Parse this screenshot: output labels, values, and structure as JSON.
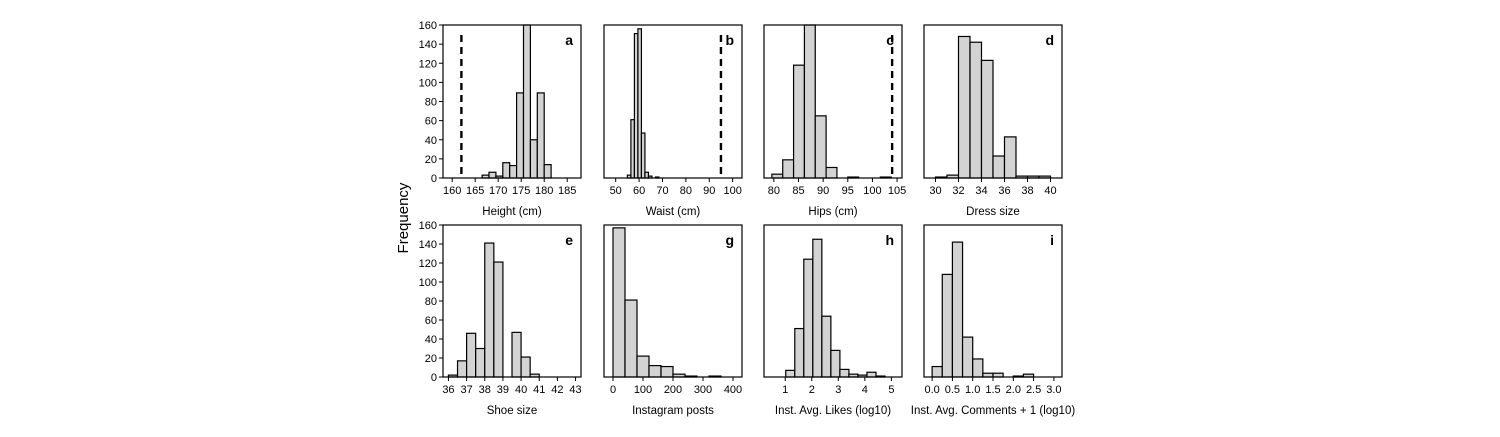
{
  "figure": {
    "ylabel": "Frequency"
  },
  "chart_data": [
    {
      "type": "bar",
      "panel": "a",
      "xlabel": "Height (cm)",
      "ylabel": "Frequency",
      "xlim": [
        158,
        188
      ],
      "ylim": [
        0,
        160
      ],
      "xticks": [
        160,
        165,
        170,
        175,
        180,
        185
      ],
      "yticks": [
        0,
        20,
        40,
        60,
        80,
        100,
        120,
        140,
        160
      ],
      "bin_width": 1.5,
      "bins": [
        {
          "x0": 166.5,
          "value": 3
        },
        {
          "x0": 168,
          "value": 6
        },
        {
          "x0": 169.5,
          "value": 2
        },
        {
          "x0": 171,
          "value": 16
        },
        {
          "x0": 172.5,
          "value": 13
        },
        {
          "x0": 174,
          "value": 89
        },
        {
          "x0": 175.5,
          "value": 160
        },
        {
          "x0": 177,
          "value": 40
        },
        {
          "x0": 178.5,
          "value": 89
        },
        {
          "x0": 180,
          "value": 14
        }
      ],
      "reference_line": 162
    },
    {
      "type": "bar",
      "panel": "b",
      "xlabel": "Waist (cm)",
      "xlim": [
        45,
        104
      ],
      "ylim": [
        0,
        160
      ],
      "xticks": [
        50,
        60,
        70,
        80,
        90,
        100
      ],
      "bin_width": 1.5,
      "bins": [
        {
          "x0": 55,
          "value": 3
        },
        {
          "x0": 56.5,
          "value": 61
        },
        {
          "x0": 58,
          "value": 151
        },
        {
          "x0": 59.5,
          "value": 156
        },
        {
          "x0": 61,
          "value": 47
        },
        {
          "x0": 62.5,
          "value": 6
        },
        {
          "x0": 64,
          "value": 2
        },
        {
          "x0": 67,
          "value": 1
        }
      ],
      "reference_line": 95
    },
    {
      "type": "bar",
      "panel": "c",
      "xlabel": "Hips (cm)",
      "xlim": [
        78,
        106
      ],
      "ylim": [
        0,
        160
      ],
      "xticks": [
        80,
        85,
        90,
        95,
        100,
        105
      ],
      "bin_width": 2.2,
      "bins": [
        {
          "x0": 79.6,
          "value": 4
        },
        {
          "x0": 81.8,
          "value": 19
        },
        {
          "x0": 84,
          "value": 118
        },
        {
          "x0": 86.2,
          "value": 160
        },
        {
          "x0": 88.4,
          "value": 65
        },
        {
          "x0": 90.6,
          "value": 11
        },
        {
          "x0": 95,
          "value": 1
        },
        {
          "x0": 101.6,
          "value": 1
        }
      ],
      "reference_line": 104
    },
    {
      "type": "bar",
      "panel": "d",
      "xlabel": "Dress size",
      "xlim": [
        29,
        41
      ],
      "ylim": [
        0,
        160
      ],
      "xticks": [
        30,
        32,
        34,
        36,
        38,
        40
      ],
      "bin_width": 1,
      "bins": [
        {
          "x0": 30,
          "value": 1
        },
        {
          "x0": 31,
          "value": 3
        },
        {
          "x0": 32,
          "value": 148
        },
        {
          "x0": 33,
          "value": 142
        },
        {
          "x0": 34,
          "value": 123
        },
        {
          "x0": 35,
          "value": 23
        },
        {
          "x0": 36,
          "value": 43
        },
        {
          "x0": 37,
          "value": 2
        },
        {
          "x0": 38,
          "value": 2
        },
        {
          "x0": 39,
          "value": 2
        }
      ]
    },
    {
      "type": "bar",
      "panel": "e",
      "xlabel": "Shoe size",
      "xlim": [
        35.7,
        43.3
      ],
      "ylim": [
        0,
        160
      ],
      "xticks": [
        36,
        37,
        38,
        39,
        40,
        41,
        42,
        43
      ],
      "xtick_labels": [
        "36",
        "37",
        "38",
        "39",
        "40",
        "41",
        "42",
        "43"
      ],
      "yticks": [
        0,
        20,
        40,
        60,
        80,
        100,
        120,
        140,
        160
      ],
      "bin_width": 0.5,
      "bins": [
        {
          "x0": 36,
          "value": 2
        },
        {
          "x0": 36.5,
          "value": 17
        },
        {
          "x0": 37,
          "value": 46
        },
        {
          "x0": 37.5,
          "value": 30
        },
        {
          "x0": 38,
          "value": 141
        },
        {
          "x0": 38.5,
          "value": 121
        },
        {
          "x0": 39.5,
          "value": 47
        },
        {
          "x0": 40,
          "value": 21
        },
        {
          "x0": 40.5,
          "value": 3
        }
      ]
    },
    {
      "type": "bar",
      "panel": "g",
      "xlabel": "Instagram posts",
      "xlim": [
        -30,
        430
      ],
      "ylim": [
        0,
        160
      ],
      "xticks": [
        0,
        100,
        200,
        300,
        400
      ],
      "bin_width": 40,
      "bins": [
        {
          "x0": 0,
          "value": 157
        },
        {
          "x0": 40,
          "value": 81
        },
        {
          "x0": 80,
          "value": 22
        },
        {
          "x0": 120,
          "value": 12
        },
        {
          "x0": 160,
          "value": 11
        },
        {
          "x0": 200,
          "value": 3
        },
        {
          "x0": 240,
          "value": 1
        },
        {
          "x0": 320,
          "value": 1
        }
      ]
    },
    {
      "type": "bar",
      "panel": "h",
      "xlabel": "Inst. Avg. Likes (log10)",
      "xlim": [
        0.2,
        5.4
      ],
      "ylim": [
        0,
        160
      ],
      "xticks": [
        1,
        2,
        3,
        4,
        5
      ],
      "bin_width": 0.34,
      "bins": [
        {
          "x0": 1.02,
          "value": 7
        },
        {
          "x0": 1.36,
          "value": 51
        },
        {
          "x0": 1.7,
          "value": 124
        },
        {
          "x0": 2.04,
          "value": 145
        },
        {
          "x0": 2.38,
          "value": 64
        },
        {
          "x0": 2.72,
          "value": 28
        },
        {
          "x0": 3.06,
          "value": 8
        },
        {
          "x0": 3.4,
          "value": 3
        },
        {
          "x0": 3.74,
          "value": 2
        },
        {
          "x0": 4.08,
          "value": 5
        },
        {
          "x0": 4.42,
          "value": 1
        }
      ]
    },
    {
      "type": "bar",
      "panel": "i",
      "xlabel": "Inst. Avg. Comments + 1 (log10)",
      "xlim": [
        -0.2,
        3.2
      ],
      "ylim": [
        0,
        160
      ],
      "xticks": [
        0.0,
        0.5,
        1.0,
        1.5,
        2.0,
        2.5,
        3.0
      ],
      "xtick_labels": [
        "0.0",
        "0.5",
        "1.0",
        "1.5",
        "2.0",
        "2.5",
        "3.0"
      ],
      "bin_width": 0.25,
      "bins": [
        {
          "x0": 0.0,
          "value": 11
        },
        {
          "x0": 0.25,
          "value": 108
        },
        {
          "x0": 0.5,
          "value": 142
        },
        {
          "x0": 0.75,
          "value": 42
        },
        {
          "x0": 1.0,
          "value": 19
        },
        {
          "x0": 1.25,
          "value": 4
        },
        {
          "x0": 1.5,
          "value": 4
        },
        {
          "x0": 2.0,
          "value": 1
        },
        {
          "x0": 2.25,
          "value": 3
        }
      ]
    }
  ]
}
